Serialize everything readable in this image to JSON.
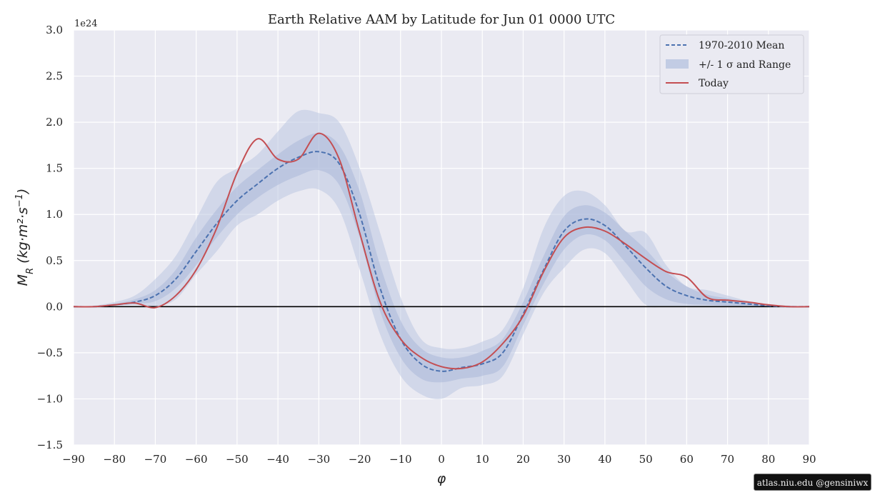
{
  "credit": "atlas.niu.edu  @gensiniwx",
  "chart_data": {
    "type": "line",
    "title": "Earth Relative AAM by Latitude for Jun 01 0000 UTC",
    "xlabel": "φ",
    "ylabel": "M_R (kg·m²·s⁻¹)",
    "ylabel_parts": {
      "symbol": "M",
      "sub": "R",
      "units": "(kg·m²·s",
      "exp": "−1",
      "close": ")"
    },
    "y_scale_label": "1e24",
    "xlim": [
      -90,
      90
    ],
    "ylim": [
      -1.5,
      3.0
    ],
    "x_ticks": [
      -90,
      -80,
      -70,
      -60,
      -50,
      -40,
      -30,
      -20,
      -10,
      0,
      10,
      20,
      30,
      40,
      50,
      60,
      70,
      80,
      90
    ],
    "x_tick_labels": [
      "−90",
      "−80",
      "−70",
      "−60",
      "−50",
      "−40",
      "−30",
      "−20",
      "−10",
      "0",
      "10",
      "20",
      "30",
      "40",
      "50",
      "60",
      "70",
      "80",
      "90"
    ],
    "y_ticks": [
      -1.5,
      -1.0,
      -0.5,
      0.0,
      0.5,
      1.0,
      1.5,
      2.0,
      2.5,
      3.0
    ],
    "y_tick_labels": [
      "−1.5",
      "−1.0",
      "−0.5",
      "0.0",
      "0.5",
      "1.0",
      "1.5",
      "2.0",
      "2.5",
      "3.0"
    ],
    "grid": true,
    "legend_position": "top-right",
    "legend": [
      {
        "label": "1970-2010 Mean",
        "style": "dashed",
        "color": "#4c72b0"
      },
      {
        "label": "+/- 1 σ and Range",
        "style": "band",
        "color": "#b8c4e0"
      },
      {
        "label": "Today",
        "style": "solid",
        "color": "#c44e52"
      }
    ],
    "x": [
      -90,
      -85,
      -80,
      -75,
      -70,
      -65,
      -60,
      -55,
      -50,
      -45,
      -40,
      -35,
      -30,
      -25,
      -20,
      -15,
      -10,
      -5,
      0,
      5,
      10,
      15,
      20,
      25,
      30,
      35,
      40,
      45,
      50,
      55,
      60,
      65,
      70,
      75,
      80,
      85,
      90
    ],
    "series": [
      {
        "name": "1970-2010 Mean",
        "color": "#4c72b0",
        "style": "dashed",
        "values": [
          0,
          0,
          0.02,
          0.05,
          0.12,
          0.3,
          0.6,
          0.9,
          1.15,
          1.33,
          1.5,
          1.62,
          1.68,
          1.55,
          1.0,
          0.2,
          -0.35,
          -0.62,
          -0.7,
          -0.66,
          -0.62,
          -0.5,
          -0.08,
          0.4,
          0.82,
          0.95,
          0.88,
          0.66,
          0.42,
          0.22,
          0.12,
          0.07,
          0.05,
          0.03,
          0.01,
          0,
          0
        ]
      },
      {
        "name": "Today",
        "color": "#c44e52",
        "style": "solid",
        "values": [
          0,
          0,
          0.02,
          0.04,
          -0.01,
          0.12,
          0.4,
          0.85,
          1.45,
          1.82,
          1.6,
          1.6,
          1.88,
          1.6,
          0.8,
          0.05,
          -0.35,
          -0.55,
          -0.65,
          -0.67,
          -0.6,
          -0.4,
          -0.1,
          0.38,
          0.75,
          0.86,
          0.82,
          0.68,
          0.52,
          0.38,
          0.32,
          0.1,
          0.07,
          0.05,
          0.02,
          0,
          0
        ]
      }
    ],
    "bands": [
      {
        "name": "range",
        "color": "#b8c4e0",
        "opacity": 0.55,
        "lower": [
          0,
          0,
          0.01,
          0.02,
          0.0,
          0.08,
          0.35,
          0.6,
          0.88,
          1.0,
          1.15,
          1.25,
          1.27,
          1.05,
          0.4,
          -0.3,
          -0.75,
          -0.95,
          -1.0,
          -0.88,
          -0.85,
          -0.75,
          -0.3,
          0.15,
          0.42,
          0.62,
          0.58,
          0.3,
          0.02,
          0.0,
          0.0,
          0.0,
          0.0,
          0.0,
          0.0,
          0,
          0
        ],
        "upper": [
          0,
          0.01,
          0.05,
          0.12,
          0.3,
          0.55,
          0.95,
          1.35,
          1.5,
          1.65,
          1.9,
          2.12,
          2.1,
          2.0,
          1.5,
          0.8,
          0.1,
          -0.35,
          -0.45,
          -0.45,
          -0.38,
          -0.25,
          0.2,
          0.85,
          1.2,
          1.25,
          1.1,
          0.82,
          0.8,
          0.45,
          0.22,
          0.18,
          0.12,
          0.06,
          0.02,
          0.01,
          0
        ]
      },
      {
        "name": "std",
        "color": "#a7b6d8",
        "opacity": 0.55,
        "lower": [
          0,
          0,
          0.01,
          0.03,
          0.06,
          0.2,
          0.45,
          0.75,
          1.0,
          1.18,
          1.32,
          1.42,
          1.48,
          1.32,
          0.75,
          -0.05,
          -0.55,
          -0.78,
          -0.82,
          -0.78,
          -0.75,
          -0.65,
          -0.2,
          0.25,
          0.62,
          0.78,
          0.72,
          0.48,
          0.22,
          0.08,
          0.03,
          0.02,
          0.01,
          0.01,
          0,
          0,
          0
        ]
      },
      {
        "name": "std_upper",
        "values_for": "std",
        "upper": [
          0,
          0.005,
          0.03,
          0.08,
          0.18,
          0.4,
          0.75,
          1.05,
          1.3,
          1.48,
          1.65,
          1.8,
          1.88,
          1.75,
          1.25,
          0.45,
          -0.15,
          -0.45,
          -0.55,
          -0.55,
          -0.48,
          -0.35,
          0.05,
          0.55,
          0.98,
          1.1,
          1.02,
          0.82,
          0.62,
          0.38,
          0.22,
          0.13,
          0.09,
          0.05,
          0.02,
          0.01,
          0
        ]
      }
    ]
  }
}
